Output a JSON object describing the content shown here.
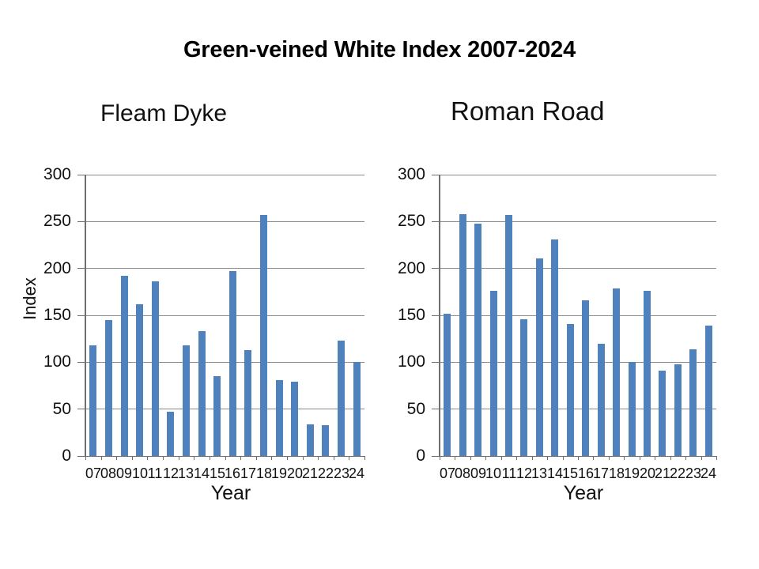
{
  "title": "Green-veined White Index 2007-2024",
  "colors": {
    "bar": "#4F81BD",
    "axis": "#6e6e6e",
    "gridline": "#8a8a8a",
    "text": "#111111",
    "background": "#ffffff"
  },
  "chart_data": [
    {
      "type": "bar",
      "title": "Fleam Dyke",
      "xlabel": "Year",
      "ylabel": "Index",
      "categories": [
        "07",
        "08",
        "09",
        "10",
        "11",
        "12",
        "13",
        "14",
        "15",
        "16",
        "17",
        "18",
        "19",
        "20",
        "21",
        "22",
        "23",
        "24"
      ],
      "values": [
        118,
        145,
        192,
        162,
        186,
        47,
        118,
        133,
        85,
        197,
        113,
        257,
        81,
        79,
        34,
        33,
        123,
        100
      ],
      "ylim": [
        0,
        300
      ],
      "yticks": [
        0,
        50,
        100,
        150,
        200,
        250,
        300
      ],
      "grid": true,
      "legend": "none",
      "bar_color": "#4F81BD"
    },
    {
      "type": "bar",
      "title": "Roman Road",
      "xlabel": "Year",
      "ylabel": "",
      "categories": [
        "07",
        "08",
        "09",
        "10",
        "11",
        "12",
        "13",
        "14",
        "15",
        "16",
        "17",
        "18",
        "19",
        "20",
        "21",
        "22",
        "23",
        "24"
      ],
      "values": [
        152,
        258,
        248,
        176,
        257,
        146,
        211,
        231,
        141,
        166,
        120,
        179,
        100,
        176,
        91,
        98,
        114,
        139
      ],
      "ylim": [
        0,
        300
      ],
      "yticks": [
        0,
        50,
        100,
        150,
        200,
        250,
        300
      ],
      "grid": true,
      "legend": "none",
      "bar_color": "#4F81BD"
    }
  ]
}
